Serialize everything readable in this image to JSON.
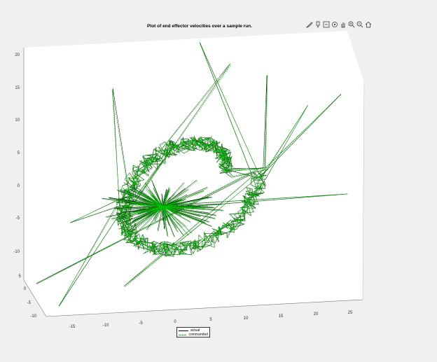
{
  "title": "Plot of end effector velocities over a sample run.",
  "toolbar": {
    "buttons": [
      {
        "name": "brush-icon"
      },
      {
        "name": "datatip-icon"
      },
      {
        "name": "export-icon"
      },
      {
        "name": "rotate-icon"
      },
      {
        "name": "pan-icon"
      },
      {
        "name": "zoom-in-icon"
      },
      {
        "name": "zoom-out-icon"
      },
      {
        "name": "home-icon"
      }
    ]
  },
  "colors": {
    "actual": "#000000",
    "commanded": "#00c000",
    "axes_background": "#ffffff",
    "figure_background": "#f0f0f0"
  },
  "legend": {
    "entries": [
      "actual",
      "commanded"
    ]
  },
  "chart_data": {
    "type": "line3d",
    "title": "Plot of end effector velocities over a sample run.",
    "xlabel": "",
    "ylabel": "",
    "zlabel": "",
    "x_ticks": [
      "-15",
      "-10",
      "-5",
      "0",
      "5",
      "10",
      "15",
      "20",
      "25"
    ],
    "y_ticks": [
      "-10",
      "-5",
      "0",
      "5"
    ],
    "z_ticks": [
      "-10",
      "-5",
      "0",
      "5",
      "10",
      "15",
      "20"
    ],
    "xlim": [
      -18,
      27
    ],
    "ylim": [
      -11,
      6
    ],
    "zlim": [
      -12,
      21
    ],
    "grid": false,
    "legend_position": "bottom",
    "series": [
      {
        "name": "actual",
        "style": "solid"
      },
      {
        "name": "commanded",
        "style": "dashed"
      }
    ]
  }
}
